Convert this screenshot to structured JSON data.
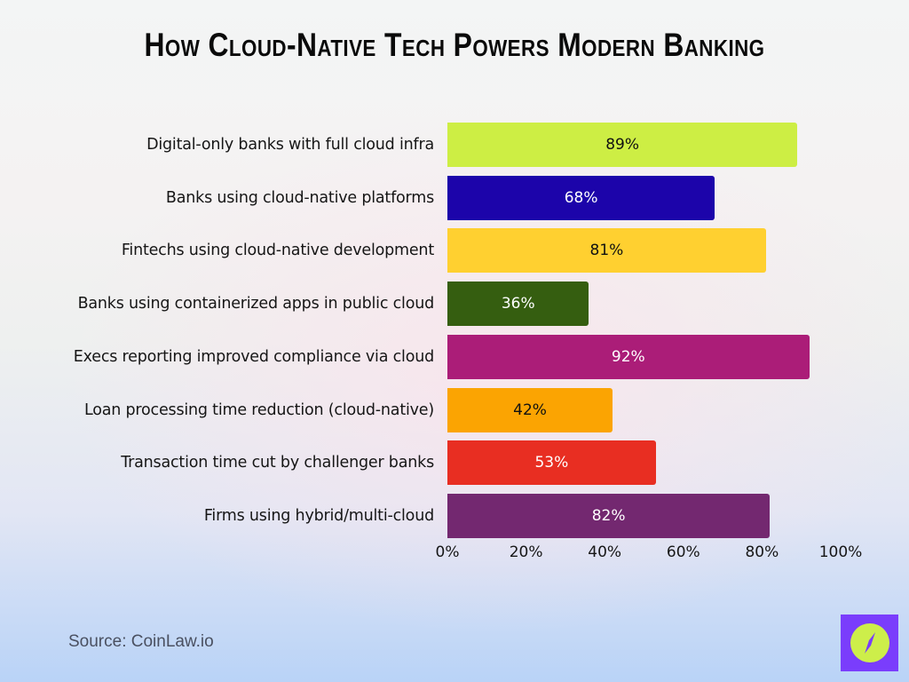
{
  "title": "How Cloud-Native Tech Powers Modern Banking",
  "source": "Source: CoinLaw.io",
  "logo": {
    "icon": "compass-icon",
    "bg_color": "#7a3dfc",
    "circle_color": "#cdee4a"
  },
  "axis": {
    "ticks": [
      "0%",
      "20%",
      "40%",
      "60%",
      "80%",
      "100%"
    ]
  },
  "bars": [
    {
      "label": "Digital-only banks with full cloud infra",
      "value": 89,
      "display": "89%",
      "color": "#cdee44",
      "text_color": "#111111"
    },
    {
      "label": "Banks using cloud-native platforms",
      "value": 68,
      "display": "68%",
      "color": "#1c04aa",
      "text_color": "#ffffff"
    },
    {
      "label": "Fintechs using cloud-native development",
      "value": 81,
      "display": "81%",
      "color": "#ffd030",
      "text_color": "#111111"
    },
    {
      "label": "Banks using containerized apps in public cloud",
      "value": 36,
      "display": "36%",
      "color": "#355e10",
      "text_color": "#ffffff"
    },
    {
      "label": "Execs reporting improved compliance via cloud",
      "value": 92,
      "display": "92%",
      "color": "#ab1d78",
      "text_color": "#ffffff"
    },
    {
      "label": "Loan processing time reduction (cloud-native)",
      "value": 42,
      "display": "42%",
      "color": "#fba402",
      "text_color": "#111111"
    },
    {
      "label": "Transaction time cut by challenger banks",
      "value": 53,
      "display": "53%",
      "color": "#e82e22",
      "text_color": "#ffffff"
    },
    {
      "label": "Firms using hybrid/multi-cloud",
      "value": 82,
      "display": "82%",
      "color": "#732870",
      "text_color": "#ffffff"
    }
  ],
  "chart_data": {
    "type": "bar",
    "orientation": "horizontal",
    "title": "How Cloud-Native Tech Powers Modern Banking",
    "categories": [
      "Digital-only banks with full cloud infra",
      "Banks using cloud-native platforms",
      "Fintechs using cloud-native development",
      "Banks using containerized apps in public cloud",
      "Execs reporting improved compliance via cloud",
      "Loan processing time reduction (cloud-native)",
      "Transaction time cut by challenger banks",
      "Firms using hybrid/multi-cloud"
    ],
    "values": [
      89,
      68,
      81,
      36,
      92,
      42,
      53,
      82
    ],
    "xlabel": "",
    "ylabel": "",
    "xlim": [
      0,
      100
    ],
    "x_tick_labels": [
      "0%",
      "20%",
      "40%",
      "60%",
      "80%",
      "100%"
    ],
    "grid": false,
    "legend": null,
    "data_labels": [
      "89%",
      "68%",
      "81%",
      "36%",
      "92%",
      "42%",
      "53%",
      "82%"
    ],
    "annotations": [
      "Source: CoinLaw.io"
    ]
  }
}
